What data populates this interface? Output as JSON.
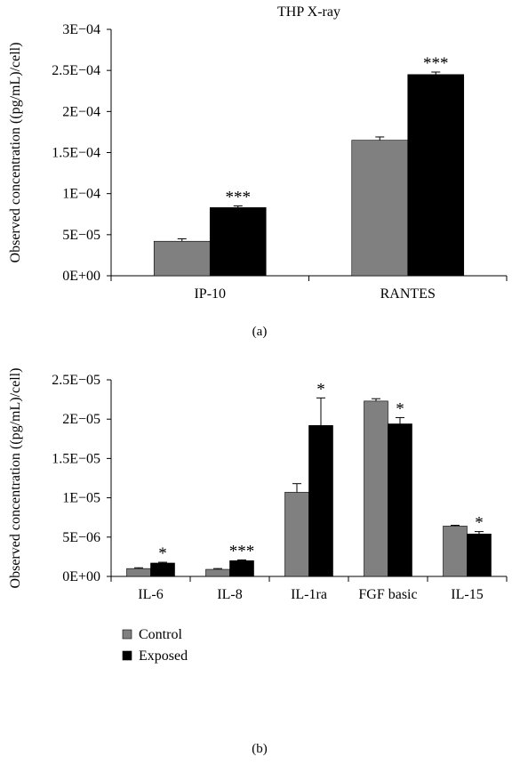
{
  "chart_data": [
    {
      "type": "bar",
      "title": "THP X-ray",
      "panel_label": "(a)",
      "ylabel": "Observed concentration ((pg/mL)/cell)",
      "xlabel": "",
      "ylim": [
        0,
        0.0003
      ],
      "y_ticks": [
        0,
        5e-05,
        0.0001,
        0.00015,
        0.0002,
        0.00025,
        0.0003
      ],
      "y_tick_labels": [
        "0E+00",
        "5E−05",
        "1E−04",
        "1.5E−04",
        "2E−04",
        "2.5E−04",
        "3E−04"
      ],
      "categories": [
        "IP-10",
        "RANTES"
      ],
      "series": [
        {
          "name": "Control",
          "color": "#808080",
          "values": [
            4.2e-05,
            0.000165
          ],
          "errors": [
            3e-06,
            4e-06
          ]
        },
        {
          "name": "Exposed",
          "color": "#000000",
          "values": [
            8.3e-05,
            0.000245
          ],
          "errors": [
            2e-06,
            3e-06
          ]
        }
      ],
      "significance": [
        [
          "",
          "***"
        ],
        [
          "",
          "***"
        ]
      ],
      "grid": false
    },
    {
      "type": "bar",
      "title": "",
      "panel_label": "(b)",
      "ylabel": "Observed concentration ((pg/mL)/cell)",
      "xlabel": "",
      "ylim": [
        0,
        2.5e-05
      ],
      "y_ticks": [
        0,
        5e-06,
        1e-05,
        1.5e-05,
        2e-05,
        2.5e-05
      ],
      "y_tick_labels": [
        "0E+00",
        "5E−06",
        "1E−05",
        "1.5E−05",
        "2E−05",
        "2.5E−05"
      ],
      "categories": [
        "IL-6",
        "IL-8",
        "IL-1ra",
        "FGF basic",
        "IL-15"
      ],
      "series": [
        {
          "name": "Control",
          "color": "#808080",
          "values": [
            1e-06,
            9e-07,
            1.07e-05,
            2.23e-05,
            6.4e-06
          ],
          "errors": [
            1e-07,
            1e-07,
            1.1e-06,
            3e-07,
            1e-07
          ]
        },
        {
          "name": "Exposed",
          "color": "#000000",
          "values": [
            1.7e-06,
            2e-06,
            1.92e-05,
            1.94e-05,
            5.4e-06
          ],
          "errors": [
            1e-07,
            1e-07,
            3.5e-06,
            8e-07,
            3e-07
          ]
        }
      ],
      "significance": [
        [
          "",
          "*"
        ],
        [
          "",
          "***"
        ],
        [
          "",
          "*"
        ],
        [
          "",
          "*"
        ],
        [
          "",
          "*"
        ]
      ],
      "legend": {
        "position": "bottom-left",
        "entries": [
          "Control",
          "Exposed"
        ]
      },
      "grid": false
    }
  ]
}
